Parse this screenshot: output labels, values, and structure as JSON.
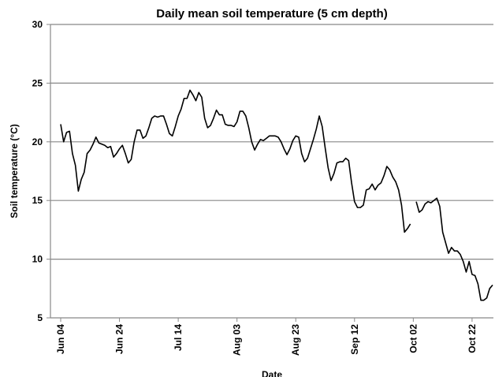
{
  "chart_data": {
    "type": "line",
    "title": "Daily mean soil temperature (5 cm depth)",
    "x_label": "Date",
    "y_label": "Soil temperature (°C)",
    "color": "#000000",
    "grid": true,
    "ylim": [
      5,
      30
    ],
    "yticks": [
      5,
      10,
      15,
      20,
      25,
      30
    ],
    "categories": [
      "Jun 04",
      null,
      null,
      null,
      null,
      null,
      null,
      null,
      null,
      null,
      null,
      null,
      null,
      null,
      null,
      null,
      null,
      null,
      null,
      null,
      "Jun 24",
      null,
      null,
      null,
      null,
      null,
      null,
      null,
      null,
      null,
      null,
      null,
      null,
      null,
      null,
      null,
      null,
      null,
      null,
      null,
      "Jul 14",
      null,
      null,
      null,
      null,
      null,
      null,
      null,
      null,
      null,
      null,
      null,
      null,
      null,
      null,
      null,
      null,
      null,
      null,
      null,
      "Aug 03",
      null,
      null,
      null,
      null,
      null,
      null,
      null,
      null,
      null,
      null,
      null,
      null,
      null,
      null,
      null,
      null,
      null,
      null,
      null,
      "Aug 23",
      null,
      null,
      null,
      null,
      null,
      null,
      null,
      null,
      null,
      null,
      null,
      null,
      null,
      null,
      null,
      null,
      null,
      null,
      null,
      "Sep 12",
      null,
      null,
      null,
      null,
      null,
      null,
      null,
      null,
      null,
      null,
      null,
      null,
      null,
      null,
      null,
      null,
      null,
      null,
      null,
      "Oct 02",
      null,
      null,
      null,
      null,
      null,
      null,
      null,
      null,
      null,
      null,
      null,
      null,
      null,
      null,
      null,
      null,
      null,
      null,
      null,
      "Oct 22",
      null,
      null,
      null,
      null,
      null,
      null,
      null
    ],
    "values": [
      21.5,
      20.0,
      20.8,
      20.9,
      19.0,
      18.0,
      15.8,
      16.8,
      17.4,
      19.0,
      19.3,
      19.8,
      20.4,
      19.9,
      19.8,
      19.7,
      19.5,
      19.6,
      18.7,
      19.0,
      19.4,
      19.7,
      19.0,
      18.2,
      18.5,
      20.0,
      21.0,
      21.0,
      20.3,
      20.5,
      21.2,
      22.0,
      22.2,
      22.1,
      22.2,
      22.2,
      21.5,
      20.7,
      20.5,
      21.3,
      22.2,
      22.8,
      23.7,
      23.7,
      24.4,
      24.0,
      23.5,
      24.2,
      23.8,
      22.0,
      21.2,
      21.4,
      22.0,
      22.7,
      22.3,
      22.3,
      21.5,
      21.4,
      21.4,
      21.3,
      21.7,
      22.6,
      22.6,
      22.2,
      21.2,
      20.0,
      19.3,
      19.8,
      20.2,
      20.1,
      20.3,
      20.5,
      20.5,
      20.5,
      20.4,
      20.0,
      19.4,
      18.9,
      19.4,
      20.1,
      20.5,
      20.4,
      19.0,
      18.3,
      18.6,
      19.4,
      20.2,
      21.1,
      22.2,
      21.3,
      19.5,
      17.8,
      16.7,
      17.3,
      18.2,
      18.3,
      18.3,
      18.6,
      18.4,
      16.5,
      14.9,
      14.4,
      14.4,
      14.6,
      15.9,
      16.0,
      16.4,
      15.9,
      16.3,
      16.5,
      17.1,
      17.9,
      17.6,
      17.0,
      16.6,
      15.9,
      14.6,
      12.3,
      12.6,
      13.0,
      null,
      14.9,
      14.0,
      14.2,
      14.7,
      14.9,
      14.8,
      15.0,
      15.2,
      14.5,
      12.3,
      11.4,
      10.5,
      11.0,
      10.7,
      10.7,
      10.4,
      9.8,
      8.9,
      9.8,
      8.7,
      8.6,
      7.9,
      6.5,
      6.5,
      6.7,
      7.5,
      7.8
    ]
  }
}
